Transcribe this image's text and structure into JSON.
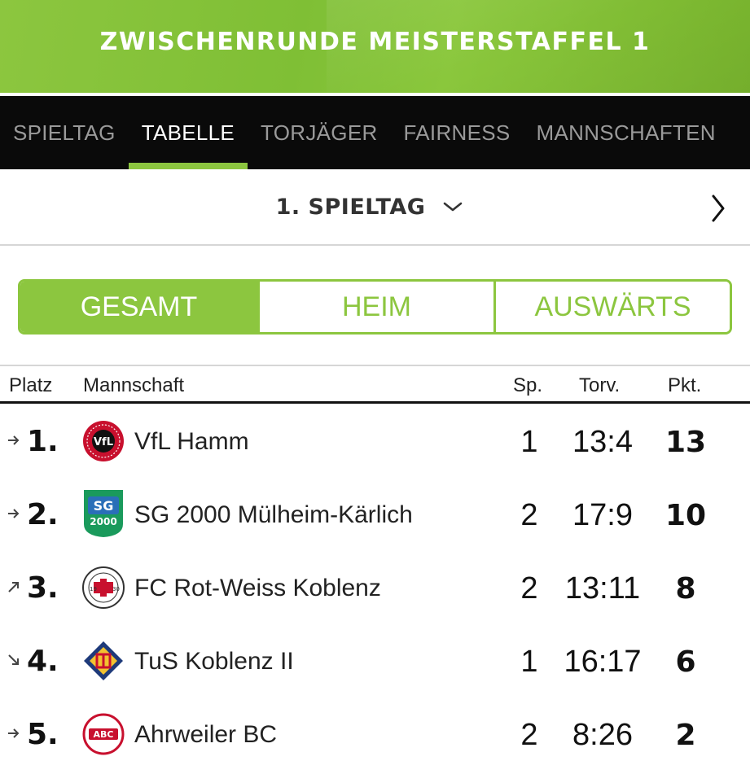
{
  "header": {
    "title": "ZWISCHENRUNDE MEISTERSTAFFEL 1"
  },
  "tabs": [
    {
      "label": "SPIELTAG",
      "active": false
    },
    {
      "label": "TABELLE",
      "active": true
    },
    {
      "label": "TORJÄGER",
      "active": false
    },
    {
      "label": "FAIRNESS",
      "active": false
    },
    {
      "label": "MANNSCHAFTEN",
      "active": false
    }
  ],
  "round_selector": {
    "label": "1. SPIELTAG",
    "dropdown_icon": "chevron-down-icon",
    "next_icon": "chevron-right-icon"
  },
  "filter": {
    "options": [
      "GESAMT",
      "HEIM",
      "AUSWÄRTS"
    ],
    "selected": "GESAMT"
  },
  "table": {
    "columns": {
      "place": "Platz",
      "team": "Mannschaft",
      "games": "Sp.",
      "goals": "Torv.",
      "points": "Pkt."
    },
    "rows": [
      {
        "rank": "1.",
        "trend": "right",
        "team": "VfL Hamm",
        "games": "1",
        "goals": "13:4",
        "points": "13",
        "logo": "vfl-hamm-logo"
      },
      {
        "rank": "2.",
        "trend": "right",
        "team": "SG 2000 Mülheim-Kärlich",
        "games": "2",
        "goals": "17:9",
        "points": "10",
        "logo": "sg-2000-logo"
      },
      {
        "rank": "3.",
        "trend": "up",
        "team": "FC Rot-Weiss Koblenz",
        "games": "2",
        "goals": "13:11",
        "points": "8",
        "logo": "fc-rot-weiss-logo"
      },
      {
        "rank": "4.",
        "trend": "down",
        "team": "TuS Koblenz II",
        "games": "1",
        "goals": "16:17",
        "points": "6",
        "logo": "tus-koblenz-logo"
      },
      {
        "rank": "5.",
        "trend": "right",
        "team": "Ahrweiler BC",
        "games": "2",
        "goals": "8:26",
        "points": "2",
        "logo": "ahrweiler-bc-logo"
      }
    ]
  },
  "logo_text": {
    "sg_top": "SG",
    "sg_year": "2000",
    "rw_year_left": "19",
    "rw_year_right": "30",
    "abc": "ABC"
  },
  "colors": {
    "accent": "#8cc63f",
    "tabbar": "#0a0a0a",
    "text": "#222222"
  }
}
